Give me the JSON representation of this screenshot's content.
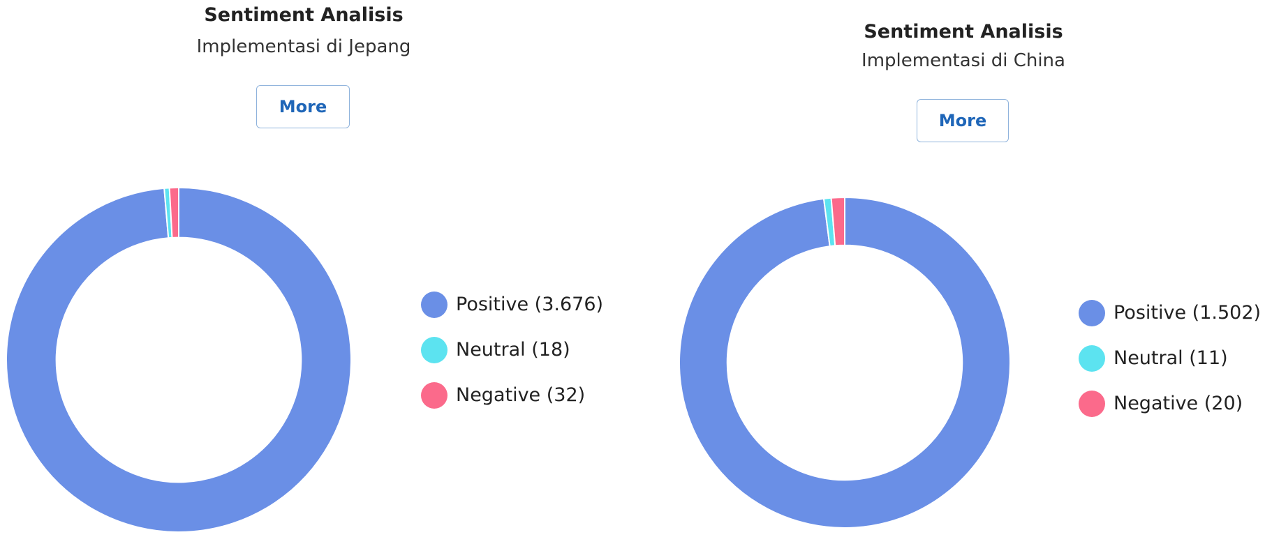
{
  "colors": {
    "positive": "#6a8fe6",
    "neutral": "#5ce3f0",
    "negative": "#fb6a8b",
    "button_text": "#1f66b8",
    "button_border": "#8fb3dc"
  },
  "chart_data": [
    {
      "type": "pie",
      "variant": "donut",
      "title": "Sentiment Analisis",
      "subtitle": "Implementasi di Jepang",
      "button_label": "More",
      "categories": [
        "Positive",
        "Neutral",
        "Negative"
      ],
      "values": [
        3676,
        18,
        32
      ],
      "legend": [
        {
          "label": "Positive (3.676)",
          "color": "#6a8fe6"
        },
        {
          "label": "Neutral (18)",
          "color": "#5ce3f0"
        },
        {
          "label": "Negative (32)",
          "color": "#fb6a8b"
        }
      ],
      "legend_position": "right"
    },
    {
      "type": "pie",
      "variant": "donut",
      "title": "Sentiment Analisis",
      "subtitle": "Implementasi di China",
      "button_label": "More",
      "categories": [
        "Positive",
        "Neutral",
        "Negative"
      ],
      "values": [
        1502,
        11,
        20
      ],
      "legend": [
        {
          "label": "Positive (1.502)",
          "color": "#6a8fe6"
        },
        {
          "label": "Neutral (11)",
          "color": "#5ce3f0"
        },
        {
          "label": "Negative (20)",
          "color": "#fb6a8b"
        }
      ],
      "legend_position": "right"
    }
  ]
}
